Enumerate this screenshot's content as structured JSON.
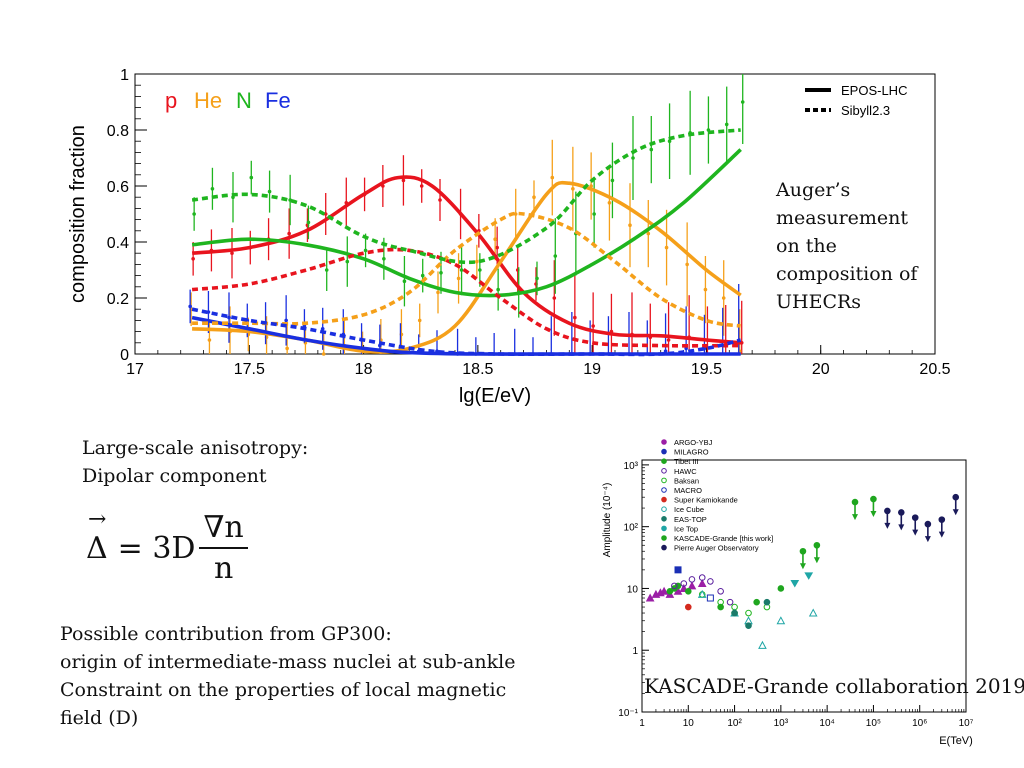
{
  "chart_data": [
    {
      "type": "line",
      "xlabel": "lg(E/eV)",
      "ylabel": "composition fraction",
      "xlim": [
        17,
        20.5
      ],
      "ylim": [
        0,
        1
      ],
      "xticks": [
        "17",
        "17.5",
        "18",
        "18.5",
        "19",
        "19.5",
        "20",
        "20.5"
      ],
      "yticks": [
        "0",
        "0.2",
        "0.4",
        "0.6",
        "0.8",
        "1"
      ],
      "species_labels": [
        {
          "text": "p",
          "color": "#e8141e"
        },
        {
          "text": "He",
          "color": "#f5a01a"
        },
        {
          "text": "N",
          "color": "#1fb51f"
        },
        {
          "text": "Fe",
          "color": "#1a2fe0"
        }
      ],
      "legend": {
        "position": "top-right",
        "entries": [
          "EPOS-LHC",
          "Sibyll2.3"
        ]
      },
      "series": [
        {
          "name": "p",
          "model": "EPOS-LHC",
          "color": "#e8141e",
          "dashed": false,
          "x": [
            17.25,
            17.5,
            17.75,
            18,
            18.15,
            18.3,
            18.5,
            18.7,
            18.9,
            19.1,
            19.3,
            19.5,
            19.65
          ],
          "y": [
            0.36,
            0.38,
            0.44,
            0.57,
            0.63,
            0.6,
            0.43,
            0.22,
            0.11,
            0.07,
            0.065,
            0.05,
            0.04
          ]
        },
        {
          "name": "He",
          "model": "EPOS-LHC",
          "color": "#f5a01a",
          "dashed": false,
          "x": [
            17.25,
            17.5,
            17.75,
            18,
            18.2,
            18.4,
            18.6,
            18.8,
            18.9,
            19.1,
            19.3,
            19.5,
            19.65
          ],
          "y": [
            0.09,
            0.08,
            0.05,
            0.01,
            0.02,
            0.1,
            0.33,
            0.57,
            0.61,
            0.55,
            0.44,
            0.3,
            0.21
          ]
        },
        {
          "name": "N",
          "model": "EPOS-LHC",
          "color": "#1fb51f",
          "dashed": false,
          "x": [
            17.25,
            17.5,
            17.75,
            18,
            18.2,
            18.4,
            18.6,
            18.8,
            19,
            19.2,
            19.4,
            19.65
          ],
          "y": [
            0.39,
            0.41,
            0.39,
            0.34,
            0.27,
            0.22,
            0.21,
            0.24,
            0.32,
            0.42,
            0.54,
            0.73
          ]
        },
        {
          "name": "Fe",
          "model": "EPOS-LHC",
          "color": "#1a2fe0",
          "dashed": false,
          "x": [
            17.25,
            17.5,
            17.75,
            18,
            18.2,
            18.5,
            19,
            19.5,
            19.65
          ],
          "y": [
            0.13,
            0.09,
            0.05,
            0.02,
            0.005,
            0,
            0,
            0,
            0
          ]
        },
        {
          "name": "p",
          "model": "Sibyll2.3",
          "color": "#e8141e",
          "dashed": true,
          "x": [
            17.25,
            17.5,
            17.75,
            18,
            18.2,
            18.4,
            18.6,
            18.8,
            19,
            19.3,
            19.65
          ],
          "y": [
            0.23,
            0.25,
            0.3,
            0.36,
            0.37,
            0.32,
            0.2,
            0.09,
            0.04,
            0.03,
            0.03
          ]
        },
        {
          "name": "He",
          "model": "Sibyll2.3",
          "color": "#f5a01a",
          "dashed": true,
          "x": [
            17.25,
            17.5,
            17.75,
            18,
            18.2,
            18.4,
            18.6,
            18.7,
            18.9,
            19.1,
            19.3,
            19.5,
            19.65
          ],
          "y": [
            0.11,
            0.11,
            0.11,
            0.14,
            0.22,
            0.37,
            0.48,
            0.5,
            0.45,
            0.33,
            0.2,
            0.12,
            0.1
          ]
        },
        {
          "name": "N",
          "model": "Sibyll2.3",
          "color": "#1fb51f",
          "dashed": true,
          "x": [
            17.25,
            17.5,
            17.75,
            18,
            18.2,
            18.5,
            18.8,
            19,
            19.2,
            19.4,
            19.65
          ],
          "y": [
            0.55,
            0.57,
            0.53,
            0.42,
            0.37,
            0.33,
            0.45,
            0.62,
            0.73,
            0.78,
            0.8
          ]
        },
        {
          "name": "Fe",
          "model": "Sibyll2.3",
          "color": "#1a2fe0",
          "dashed": true,
          "x": [
            17.25,
            17.5,
            17.75,
            18,
            18.3,
            18.6,
            19,
            19.3,
            19.5,
            19.65
          ],
          "y": [
            0.16,
            0.12,
            0.09,
            0.05,
            0.01,
            0,
            0,
            0,
            0.02,
            0.05
          ]
        },
        {
          "name": "p",
          "type": "scatter",
          "color": "#e8141e",
          "x": [
            17.25,
            17.33,
            17.42,
            17.5,
            17.58,
            17.67,
            17.75,
            17.83,
            17.92,
            18.0,
            18.08,
            18.17,
            18.25,
            18.33,
            18.42,
            18.5,
            18.58,
            18.67,
            18.75,
            18.83,
            18.92,
            19.0,
            19.08,
            19.17,
            19.25,
            19.33,
            19.42,
            19.5,
            19.58,
            19.65
          ],
          "y": [
            0.34,
            0.37,
            0.36,
            0.38,
            0.41,
            0.43,
            0.46,
            0.5,
            0.54,
            0.57,
            0.6,
            0.62,
            0.6,
            0.55,
            0.5,
            0.44,
            0.38,
            0.3,
            0.25,
            0.2,
            0.13,
            0.1,
            0.08,
            0.07,
            0.06,
            0.05,
            0.06,
            0.05,
            0.04,
            0.04
          ]
        },
        {
          "name": "He",
          "type": "scatter",
          "color": "#f5a01a",
          "x": [
            17.25,
            17.33,
            17.42,
            17.5,
            17.58,
            17.67,
            17.75,
            17.83,
            17.92,
            18.0,
            18.08,
            18.17,
            18.25,
            18.33,
            18.42,
            18.5,
            18.58,
            18.67,
            18.75,
            18.83,
            18.92,
            19.0,
            19.08,
            19.17,
            19.25,
            19.33,
            19.42,
            19.5,
            19.58,
            19.65
          ],
          "y": [
            0.16,
            0.05,
            0.08,
            0.07,
            0.06,
            0.02,
            0.04,
            0.0,
            0.03,
            0.02,
            0.05,
            0.07,
            0.12,
            0.22,
            0.27,
            0.33,
            0.41,
            0.5,
            0.56,
            0.63,
            0.59,
            0.6,
            0.54,
            0.46,
            0.43,
            0.38,
            0.32,
            0.23,
            0.2,
            0.01
          ]
        },
        {
          "name": "N",
          "type": "scatter",
          "color": "#1fb51f",
          "x": [
            17.25,
            17.33,
            17.42,
            17.5,
            17.58,
            17.67,
            17.75,
            17.83,
            17.92,
            18.0,
            18.08,
            18.17,
            18.25,
            18.33,
            18.42,
            18.5,
            18.58,
            18.67,
            18.75,
            18.83,
            18.92,
            19.0,
            19.08,
            19.17,
            19.25,
            19.33,
            19.42,
            19.5,
            19.58,
            19.65
          ],
          "y": [
            0.5,
            0.59,
            0.56,
            0.63,
            0.58,
            0.55,
            0.47,
            0.3,
            0.33,
            0.37,
            0.34,
            0.26,
            0.28,
            0.29,
            0.3,
            0.3,
            0.23,
            0.22,
            0.27,
            0.35,
            0.43,
            0.5,
            0.62,
            0.7,
            0.73,
            0.76,
            0.79,
            0.8,
            0.82,
            0.9
          ]
        },
        {
          "name": "Fe",
          "type": "scatter",
          "color": "#1a2fe0",
          "x": [
            17.25,
            17.33,
            17.42,
            17.5,
            17.58,
            17.67,
            17.75,
            17.83,
            17.92,
            18.0,
            18.08,
            18.17,
            18.25,
            18.33,
            18.42,
            18.5,
            18.58,
            18.67,
            18.75,
            18.83,
            18.92,
            19.0,
            19.08,
            19.17,
            19.25,
            19.33,
            19.42,
            19.5,
            19.58,
            19.65
          ],
          "y": [
            0.17,
            0.15,
            0.13,
            0.12,
            0.11,
            0.12,
            0.1,
            0.09,
            0.07,
            0.05,
            0.03,
            0.02,
            0.01,
            0.01,
            0.0,
            0.0,
            0.0,
            0.0,
            0.0,
            0.0,
            0.0,
            0.0,
            0.0,
            0.0,
            0.0,
            0.01,
            0.02,
            0.02,
            0.03,
            0.1
          ]
        }
      ]
    },
    {
      "type": "scatter",
      "xlabel": "E(TeV)",
      "ylabel": "Amplitude (10⁻⁴)",
      "x_scale": "log",
      "y_scale": "log",
      "xlim": [
        1,
        10000000
      ],
      "ylim": [
        0.1,
        1200
      ],
      "xticks": [
        "1",
        "10",
        "10²",
        "10³",
        "10⁴",
        "10⁵",
        "10⁶",
        "10⁷"
      ],
      "yticks": [
        "10⁻¹",
        "1",
        "10",
        "10²",
        "10³"
      ],
      "legend": {
        "position": "top-left",
        "entries": [
          {
            "label": "ARGO-YBJ",
            "symbol": "triangle",
            "color": "#9b1fa6"
          },
          {
            "label": "MILAGRO",
            "symbol": "square-filled",
            "color": "#1a2fb5"
          },
          {
            "label": "Tibet III",
            "symbol": "star",
            "color": "#1fa61f"
          },
          {
            "label": "HAWC",
            "symbol": "diamond-open",
            "color": "#5a1f9e"
          },
          {
            "label": "Baksan",
            "symbol": "circle-open",
            "color": "#1fb51f"
          },
          {
            "label": "MACRO",
            "symbol": "square-open",
            "color": "#1a2fb5"
          },
          {
            "label": "Super Kamiokande",
            "symbol": "star",
            "color": "#d42a1f"
          },
          {
            "label": "Ice Cube",
            "symbol": "triangle-open",
            "color": "#1fa6a6"
          },
          {
            "label": "EAS-TOP",
            "symbol": "star",
            "color": "#1a7a6a"
          },
          {
            "label": "Ice Top",
            "symbol": "triangle-down",
            "color": "#1fa6a6"
          },
          {
            "label": "KASCADE-Grande [this work]",
            "symbol": "circle-filled",
            "color": "#1fa61f"
          },
          {
            "label": "Pierre Auger Observatory",
            "symbol": "star",
            "color": "#1a1a5a"
          }
        ]
      },
      "series": [
        {
          "name": "ARGO-YBJ",
          "x": [
            1.5,
            2,
            2.5,
            3,
            4,
            6,
            8,
            12,
            20
          ],
          "y": [
            7,
            8,
            8.5,
            9,
            8,
            9,
            10,
            11,
            12
          ]
        },
        {
          "name": "MILAGRO",
          "x": [
            6
          ],
          "y": [
            20
          ]
        },
        {
          "name": "Tibet III",
          "x": [
            4,
            5,
            6,
            10,
            50,
            100,
            300,
            1000
          ],
          "y": [
            9,
            10,
            11,
            9,
            5,
            4,
            6,
            10
          ]
        },
        {
          "name": "HAWC",
          "x": [
            5,
            8,
            12,
            20,
            30,
            50,
            80
          ],
          "y": [
            11,
            12,
            14,
            15,
            13,
            9,
            6
          ]
        },
        {
          "name": "Baksan",
          "x": [
            20,
            50,
            100,
            200,
            500
          ],
          "y": [
            8,
            6,
            5,
            4,
            5
          ]
        },
        {
          "name": "MACRO",
          "x": [
            30
          ],
          "y": [
            7
          ]
        },
        {
          "name": "Super Kamiokande",
          "x": [
            10
          ],
          "y": [
            5
          ]
        },
        {
          "name": "Ice Cube",
          "x": [
            20,
            100,
            200,
            400,
            1000,
            5000
          ],
          "y": [
            8,
            4,
            3,
            1.2,
            3,
            4
          ]
        },
        {
          "name": "EAS-TOP",
          "x": [
            100,
            200,
            500
          ],
          "y": [
            4,
            2.5,
            6
          ]
        },
        {
          "name": "Ice Top",
          "x": [
            2000,
            4000
          ],
          "y": [
            12,
            16
          ]
        },
        {
          "name": "KASCADE-Grande [this work]",
          "x": [
            3000,
            6000,
            40000,
            100000
          ],
          "y": [
            40,
            50,
            250,
            280
          ]
        },
        {
          "name": "Pierre Auger Observatory",
          "x": [
            200000,
            400000,
            800000,
            1500000,
            3000000,
            6000000
          ],
          "y": [
            180,
            170,
            140,
            110,
            130,
            300
          ]
        }
      ]
    }
  ],
  "annotations": {
    "auger": [
      "Auger’s",
      "measurement",
      "on the",
      "composition of",
      "UHECRs"
    ],
    "anisotropy": [
      "Large-scale anisotropy:",
      "Dipolar component"
    ],
    "formula": {
      "lhs": "Δ",
      "eq": "= 3D",
      "num": "∇n",
      "den": "n"
    },
    "gp300": [
      "Possible contribution from GP300:",
      "origin of intermediate-mass nuclei at sub-ankle",
      "Constraint on the properties of local magnetic",
      "field (D)"
    ],
    "kascade": "KASCADE-Grande collaboration 2019"
  }
}
